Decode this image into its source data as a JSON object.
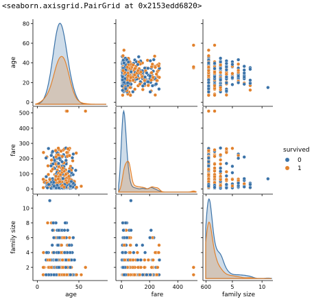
{
  "output_repr": "<seaborn.axisgrid.PairGrid at 0x2153edd6820>",
  "chart_data": {
    "type": "pairplot",
    "variables": [
      "age",
      "fare",
      "family size"
    ],
    "axis_labels": {
      "age": "age",
      "fare": "fare",
      "family_size": "family size"
    },
    "ticks": {
      "age_y": [
        "0",
        "20",
        "40",
        "60",
        "80"
      ],
      "age_x": [
        "0",
        "50"
      ],
      "fare_y": [
        "0",
        "100",
        "200",
        "300",
        "400",
        "500"
      ],
      "fare_x": [
        "0",
        "200",
        "400",
        "600"
      ],
      "family_y": [
        "2",
        "4",
        "6",
        "8",
        "10"
      ],
      "family_x": [
        "5",
        "10"
      ]
    },
    "limits": {
      "age": [
        -2,
        83
      ],
      "fare": [
        -20,
        530
      ],
      "family": [
        0.5,
        11.6
      ]
    },
    "hue": {
      "title": "survived",
      "levels": [
        "0",
        "1"
      ],
      "colors": [
        "#3a72a8",
        "#e1812c"
      ]
    },
    "kde_peaks": {
      "age": [
        {
          "x": 25,
          "density_rel": 1.0,
          "level": "0"
        },
        {
          "x": 27,
          "density_rel": 0.55,
          "level": "1"
        }
      ],
      "fare": [
        {
          "x": 8,
          "density_rel": 1.0,
          "level": "0"
        },
        {
          "x": 10,
          "density_rel": 0.3,
          "level": "1"
        }
      ],
      "family size": [
        {
          "x": 1,
          "density_rel": 1.0,
          "level": "0"
        },
        {
          "x": 1,
          "density_rel": 0.48,
          "level": "1"
        }
      ]
    },
    "notable_points": [
      {
        "age": 35,
        "fare": 512,
        "family size": 1,
        "survived": "1"
      },
      {
        "age": 36,
        "fare": 512,
        "family size": 2,
        "survived": "1"
      },
      {
        "age": 58,
        "fare": 512,
        "family size": 2,
        "survived": "1"
      },
      {
        "age": 15,
        "fare": 67,
        "family size": 11,
        "survived": "0"
      }
    ]
  }
}
